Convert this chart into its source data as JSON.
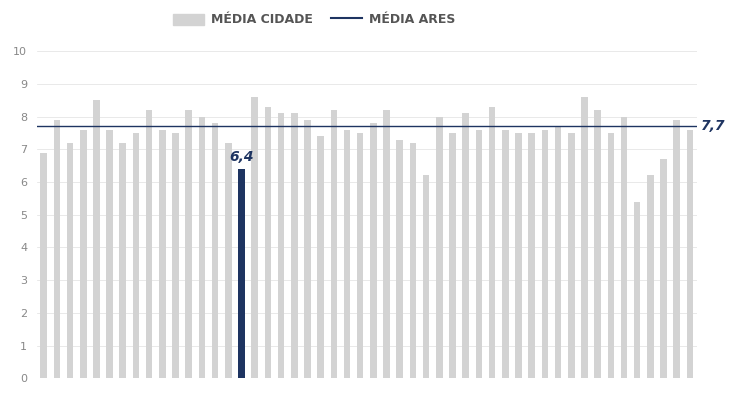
{
  "values": [
    6.9,
    7.9,
    7.2,
    7.6,
    8.5,
    7.6,
    7.2,
    7.5,
    8.2,
    7.6,
    7.5,
    8.2,
    8.0,
    7.8,
    7.2,
    6.4,
    8.6,
    8.3,
    8.1,
    8.1,
    7.9,
    7.4,
    8.2,
    7.6,
    7.5,
    7.8,
    8.2,
    7.3,
    7.2,
    6.2,
    8.0,
    7.5,
    8.1,
    7.6,
    8.3,
    7.6,
    7.5,
    7.5,
    7.6,
    7.7,
    7.5,
    8.6,
    8.2,
    7.5,
    8.0,
    5.4,
    6.2,
    6.7,
    7.9,
    7.6
  ],
  "highlighted_index": 15,
  "highlighted_value": 6.4,
  "highlighted_color": "#1e3461",
  "default_color": "#d3d3d3",
  "mean_line_value": 7.7,
  "mean_line_color": "#1e3461",
  "mean_label": "7,7",
  "mean_label_color": "#1e3461",
  "highlighted_label": "6,4",
  "highlighted_label_color": "#1e3461",
  "legend_city": "MÉDIA CIDADE",
  "legend_ares": "MÉDIA ARES",
  "ylim": [
    0,
    10
  ],
  "yticks": [
    0,
    1,
    2,
    3,
    4,
    5,
    6,
    7,
    8,
    9,
    10
  ],
  "background_color": "#ffffff",
  "grid_color": "#e0e0e0",
  "tick_label_color": "#888888",
  "legend_font_color": "#555555",
  "bar_width": 0.5
}
